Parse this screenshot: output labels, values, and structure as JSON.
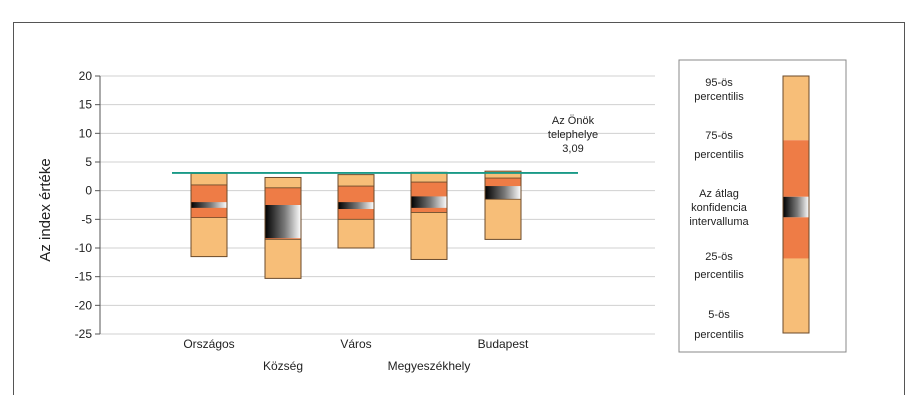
{
  "chart_data": {
    "type": "bar",
    "subtype": "percentile-range",
    "ylabel": "Az index értéke",
    "ylim": [
      -25,
      20
    ],
    "yticks": [
      20,
      15,
      10,
      5,
      0,
      -5,
      -10,
      -15,
      -20,
      -25
    ],
    "grid": true,
    "categories": [
      "Országos",
      "Község",
      "Város",
      "Megyeszékhely",
      "Budapest"
    ],
    "series": [
      {
        "name": "Országos",
        "p5": -11.5,
        "p25": -4.7,
        "ci_low": -3.0,
        "ci_high": -2.0,
        "p75": 1.0,
        "p95": 3.0
      },
      {
        "name": "Község",
        "p5": -15.3,
        "p25": -8.5,
        "ci_low": -8.3,
        "ci_high": -2.5,
        "p75": 0.5,
        "p95": 2.3
      },
      {
        "name": "Város",
        "p5": -10.0,
        "p25": -5.0,
        "ci_low": -3.2,
        "ci_high": -2.0,
        "p75": 0.8,
        "p95": 2.8
      },
      {
        "name": "Megyeszékhely",
        "p5": -12.0,
        "p25": -3.8,
        "ci_low": -3.0,
        "ci_high": -1.0,
        "p75": 1.5,
        "p95": 3.2
      },
      {
        "name": "Budapest",
        "p5": -8.5,
        "p25": -1.5,
        "ci_low": -1.5,
        "ci_high": 0.8,
        "p75": 2.2,
        "p95": 3.4
      }
    ],
    "reference_line": {
      "value": 3.09,
      "label_lines": [
        "Az Önök",
        "telephelye",
        "3,09"
      ],
      "color": "#1a9a87"
    },
    "colors": {
      "outer": "#f7be78",
      "inner": "#ee7c46",
      "ci_dark": "#000000",
      "ci_light": "#ffffff",
      "grid": "#d0d0d0"
    },
    "legend": {
      "position": "right",
      "items": [
        {
          "lines": [
            "95-ös",
            "percentilis"
          ]
        },
        {
          "lines": [
            "75-ös",
            "percentilis"
          ]
        },
        {
          "lines": [
            "Az átlag",
            "konfidencia",
            "intervalluma"
          ]
        },
        {
          "lines": [
            "25-ös",
            "percentilis"
          ]
        },
        {
          "lines": [
            "5-ös",
            "percentilis"
          ]
        }
      ]
    }
  }
}
